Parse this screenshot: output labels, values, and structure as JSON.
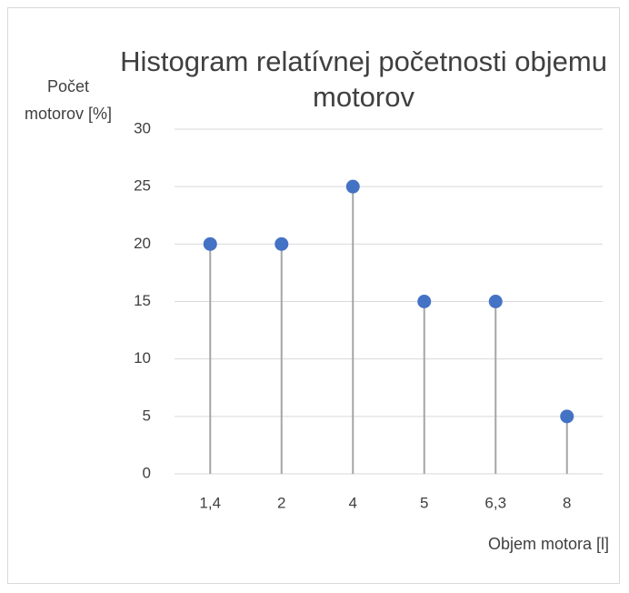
{
  "chart_data": {
    "type": "lollipop",
    "title": "Histogram relatívnej početnosti objemu motorov",
    "y_label": "Počet motorov [%]",
    "x_label": "Objem motora [l]",
    "categories": [
      "1,4",
      "2",
      "4",
      "5",
      "6,3",
      "8"
    ],
    "values": [
      20,
      20,
      25,
      15,
      15,
      5
    ],
    "color": "#4472c4",
    "stem_color": "#a5a5a5",
    "ylim": [
      0,
      30
    ],
    "yticks": [
      0,
      5,
      10,
      15,
      20,
      25,
      30
    ],
    "grid": true
  }
}
